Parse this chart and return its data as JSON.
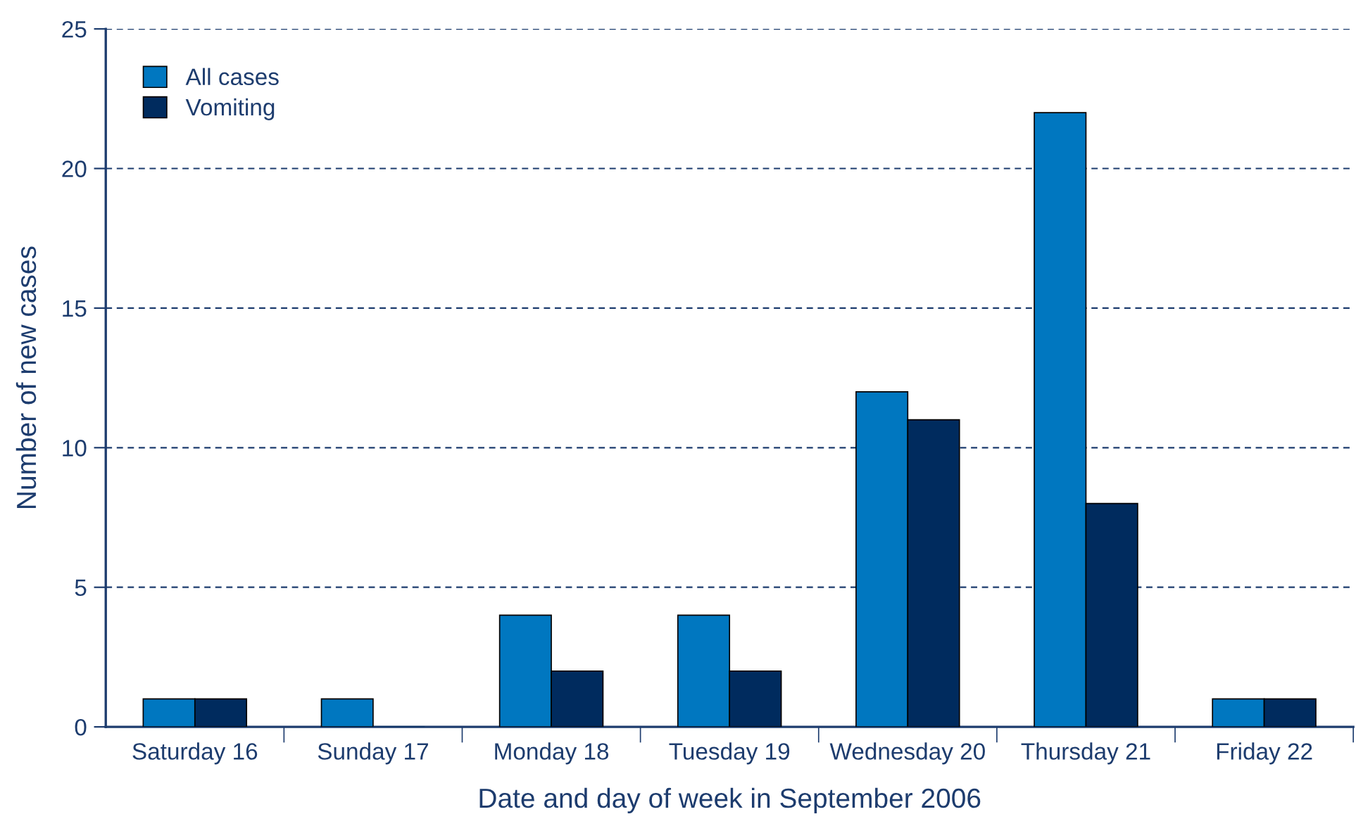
{
  "chart_data": {
    "type": "bar",
    "xlabel": "Date and day of week in September 2006",
    "ylabel": "Number of new cases",
    "categories": [
      "Saturday 16",
      "Sunday 17",
      "Monday 18",
      "Tuesday 19",
      "Wednesday 20",
      "Thursday 21",
      "Friday 22"
    ],
    "series": [
      {
        "name": "All cases",
        "color": "#0077c0",
        "values": [
          1,
          1,
          4,
          4,
          12,
          22,
          1
        ]
      },
      {
        "name": "Vomiting",
        "color": "#002b5e",
        "values": [
          1,
          0,
          2,
          2,
          11,
          8,
          1
        ]
      }
    ],
    "ylim": [
      0,
      25
    ],
    "yticks": [
      0,
      5,
      10,
      15,
      20,
      25
    ],
    "grid": "y",
    "legend": "top left"
  }
}
